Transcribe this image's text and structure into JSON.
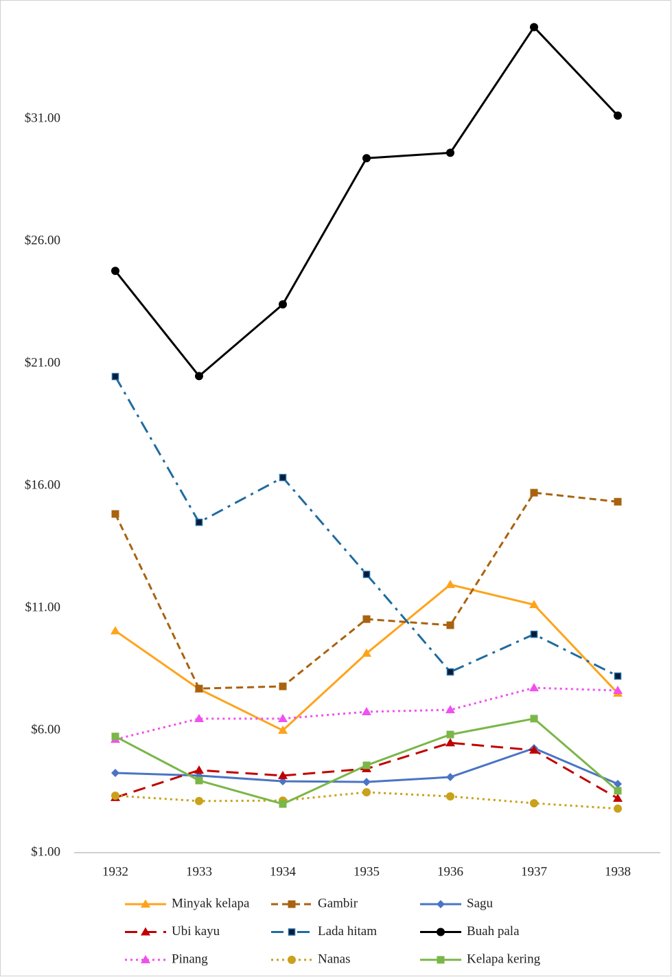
{
  "chart_data": {
    "type": "line",
    "categories": [
      "1932",
      "1933",
      "1934",
      "1935",
      "1936",
      "1937",
      "1938"
    ],
    "ylim": [
      1,
      35.7
    ],
    "yticks": [
      {
        "value": 1,
        "label": "$1.00"
      },
      {
        "value": 6,
        "label": "$6.00"
      },
      {
        "value": 11,
        "label": "$11.00"
      },
      {
        "value": 16,
        "label": "$16.00"
      },
      {
        "value": 21,
        "label": "$21.00"
      },
      {
        "value": 26,
        "label": "$26.00"
      },
      {
        "value": 31,
        "label": "$31.00"
      }
    ],
    "grid": false,
    "legend": "bottom",
    "series": [
      {
        "name": "Minyak kelapa",
        "color": "#ffa31a",
        "marker": "triangle",
        "dash": "solid",
        "values": [
          10.07,
          7.69,
          6.0,
          9.15,
          11.96,
          11.14,
          7.52
        ]
      },
      {
        "name": "Gambir",
        "color": "#a9620f",
        "marker": "square",
        "dash": "dash",
        "values": [
          14.85,
          7.71,
          7.8,
          10.55,
          10.3,
          15.72,
          15.35
        ]
      },
      {
        "name": "Sagu",
        "color": "#4a74c4",
        "marker": "diamond",
        "dash": "solid",
        "values": [
          4.26,
          4.15,
          3.92,
          3.89,
          4.09,
          5.27,
          3.81
        ]
      },
      {
        "name": "Ubi kayu",
        "color": "#c00000",
        "marker": "triangle",
        "dash": "longdash",
        "values": [
          3.25,
          4.37,
          4.15,
          4.43,
          5.49,
          5.19,
          3.22
        ]
      },
      {
        "name": "Lada hitam",
        "color": "#1f6ba0",
        "marker": "smallsquare",
        "dash": "dashdot",
        "values": [
          20.47,
          14.51,
          16.34,
          12.38,
          8.39,
          9.93,
          8.22
        ]
      },
      {
        "name": "Buah pala",
        "color": "#000000",
        "marker": "circle",
        "dash": "solid",
        "values": [
          24.79,
          20.49,
          23.42,
          29.4,
          29.62,
          34.76,
          31.14
        ]
      },
      {
        "name": "Pinang",
        "color": "#f050f0",
        "marker": "triangle",
        "dash": "dot",
        "values": [
          5.63,
          6.48,
          6.48,
          6.76,
          6.84,
          7.74,
          7.63
        ]
      },
      {
        "name": "Nanas",
        "color": "#c9a11a",
        "marker": "circle",
        "dash": "dot",
        "values": [
          3.33,
          3.11,
          3.13,
          3.47,
          3.3,
          3.02,
          2.8
        ]
      },
      {
        "name": "Kelapa kering",
        "color": "#7ab648",
        "marker": "square",
        "dash": "solid",
        "values": [
          5.75,
          3.95,
          2.99,
          4.57,
          5.83,
          6.48,
          3.53
        ]
      }
    ]
  }
}
